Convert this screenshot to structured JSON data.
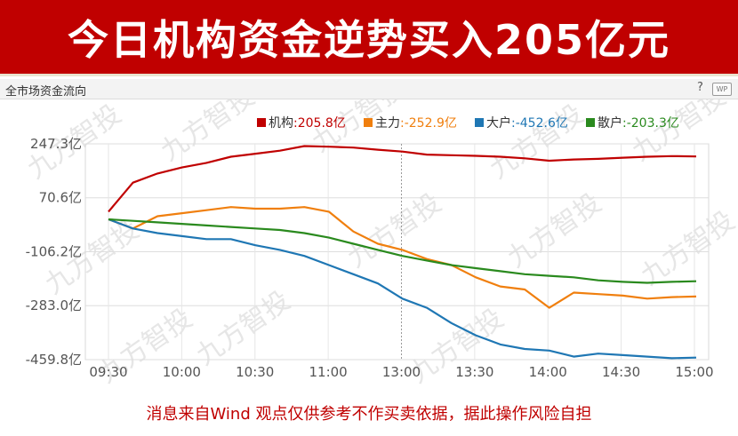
{
  "banner": {
    "title": "今日机构资金逆势买入205亿元"
  },
  "panel": {
    "title": "全市场资金流向",
    "help": "?",
    "wp": "WP"
  },
  "watermark": "九方智投",
  "footer": {
    "disclaimer": "消息来自Wind 观点仅供参考不作买卖依据，据此操作风险自担"
  },
  "chart_data": {
    "type": "line",
    "ylim": [
      -459.8,
      247.3
    ],
    "y_ticks": [
      {
        "value": 247.3,
        "label": "247.3亿"
      },
      {
        "value": 70.6,
        "label": "70.6亿"
      },
      {
        "value": -106.2,
        "label": "-106.2亿"
      },
      {
        "value": -283.0,
        "label": "-283.0亿"
      },
      {
        "value": -459.8,
        "label": "-459.8亿"
      }
    ],
    "x_ticks": [
      "09:30",
      "10:00",
      "10:30",
      "11:00",
      "13:00",
      "13:30",
      "14:00",
      "14:30",
      "15:00"
    ],
    "grid": true,
    "legend_position": "top-right",
    "series": [
      {
        "name": "机构",
        "label": "机构:205.8亿",
        "color": "#c00000",
        "x": [
          "09:30",
          "09:40",
          "09:50",
          "10:00",
          "10:10",
          "10:20",
          "10:30",
          "10:40",
          "10:50",
          "11:00",
          "11:10",
          "11:20",
          "11:30/13:00",
          "13:10",
          "13:20",
          "13:30",
          "13:40",
          "13:50",
          "14:00",
          "14:10",
          "14:20",
          "14:30",
          "14:40",
          "14:50",
          "15:00"
        ],
        "values": [
          25,
          120,
          150,
          170,
          185,
          205,
          215,
          225,
          240,
          238,
          235,
          228,
          222,
          212,
          210,
          208,
          205,
          200,
          192,
          196,
          198,
          202,
          205,
          207,
          206
        ]
      },
      {
        "name": "主力",
        "label": "主力:-252.9亿",
        "color": "#f07f0e",
        "x": [
          "09:30",
          "09:40",
          "09:50",
          "10:00",
          "10:10",
          "10:20",
          "10:30",
          "10:40",
          "10:50",
          "11:00",
          "11:10",
          "11:20",
          "11:30/13:00",
          "13:10",
          "13:20",
          "13:30",
          "13:40",
          "13:50",
          "14:00",
          "14:10",
          "14:20",
          "14:30",
          "14:40",
          "14:50",
          "15:00"
        ],
        "values": [
          0,
          -30,
          10,
          20,
          30,
          40,
          35,
          35,
          40,
          25,
          -40,
          -80,
          -100,
          -130,
          -150,
          -190,
          -220,
          -230,
          -290,
          -240,
          -245,
          -250,
          -260,
          -255,
          -253
        ]
      },
      {
        "name": "大户",
        "label": "大户:-452.6亿",
        "color": "#1f77b4",
        "x": [
          "09:30",
          "09:40",
          "09:50",
          "10:00",
          "10:10",
          "10:20",
          "10:30",
          "10:40",
          "10:50",
          "11:00",
          "11:10",
          "11:20",
          "11:30/13:00",
          "13:10",
          "13:20",
          "13:30",
          "13:40",
          "13:50",
          "14:00",
          "14:10",
          "14:20",
          "14:30",
          "14:40",
          "14:50",
          "15:00"
        ],
        "values": [
          0,
          -30,
          -45,
          -55,
          -65,
          -65,
          -85,
          -100,
          -120,
          -150,
          -180,
          -210,
          -260,
          -290,
          -340,
          -380,
          -410,
          -425,
          -430,
          -450,
          -440,
          -445,
          -450,
          -455,
          -453
        ]
      },
      {
        "name": "散户",
        "label": "散户:-203.3亿",
        "color": "#2a8a1e",
        "x": [
          "09:30",
          "09:40",
          "09:50",
          "10:00",
          "10:10",
          "10:20",
          "10:30",
          "10:40",
          "10:50",
          "11:00",
          "11:10",
          "11:20",
          "11:30/13:00",
          "13:10",
          "13:20",
          "13:30",
          "13:40",
          "13:50",
          "14:00",
          "14:10",
          "14:20",
          "14:30",
          "14:40",
          "14:50",
          "15:00"
        ],
        "values": [
          0,
          -5,
          -10,
          -15,
          -20,
          -25,
          -30,
          -35,
          -45,
          -60,
          -80,
          -100,
          -120,
          -135,
          -150,
          -160,
          -170,
          -180,
          -185,
          -190,
          -200,
          -205,
          -208,
          -205,
          -203
        ]
      }
    ]
  }
}
